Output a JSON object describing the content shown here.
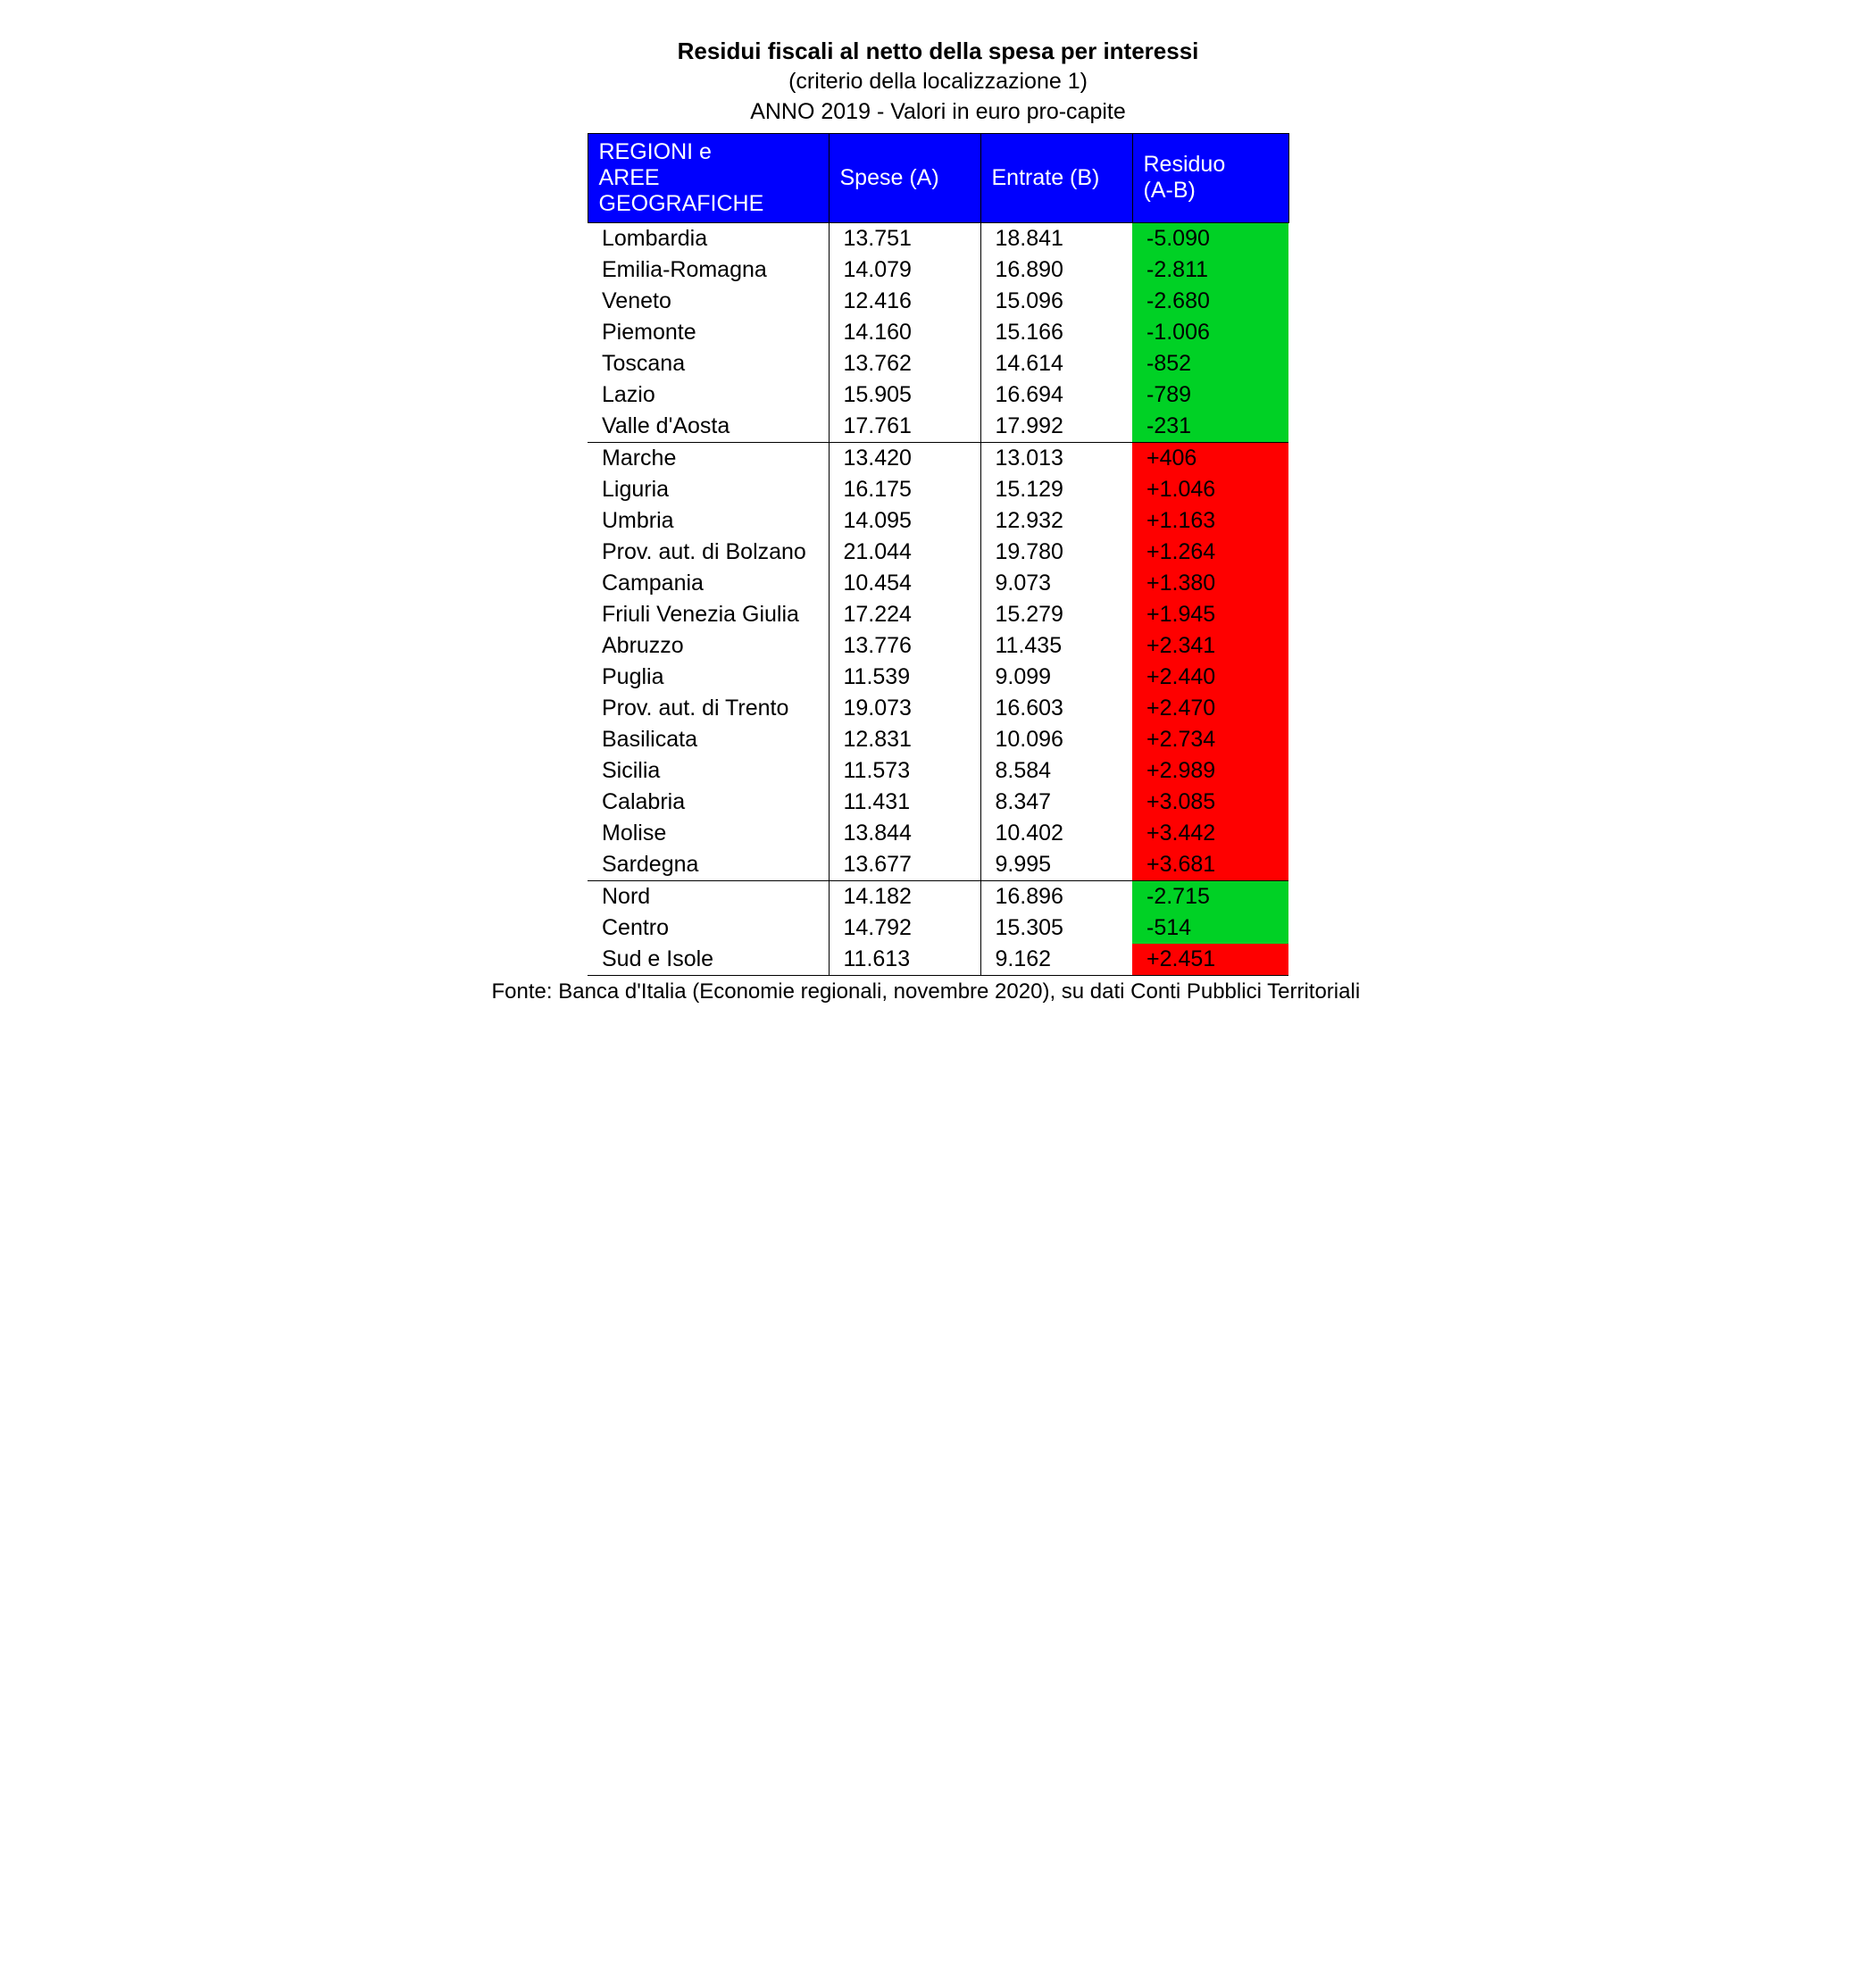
{
  "title": "Residui fiscali al netto della spesa per interessi",
  "subtitle1": "(criterio della localizzazione 1)",
  "subtitle2": "ANNO 2019 - Valori in euro pro-capite",
  "footnote": "Fonte: Banca d'Italia (Economie regionali, novembre 2020), su dati Conti Pubblici Territoriali",
  "colors": {
    "header_bg": "#0000fe",
    "header_fg": "#ffffff",
    "neg_bg": "#00d125",
    "pos_bg": "#fe0000",
    "cell_fg": "#000000",
    "border": "#000000"
  },
  "columns": {
    "region_line1": "REGIONI e",
    "region_line2": "AREE GEOGRAFICHE",
    "spese": "Spese (A)",
    "entrate": "Entrate (B)",
    "residuo_line1": "Residuo",
    "residuo_line2": "(A-B)"
  },
  "sections": [
    {
      "rows": [
        {
          "region": "Lombardia",
          "spese": "13.751",
          "entrate": "18.841",
          "residuo": "-5.090",
          "sign": "neg"
        },
        {
          "region": "Emilia-Romagna",
          "spese": "14.079",
          "entrate": "16.890",
          "residuo": "-2.811",
          "sign": "neg"
        },
        {
          "region": "Veneto",
          "spese": "12.416",
          "entrate": "15.096",
          "residuo": "-2.680",
          "sign": "neg"
        },
        {
          "region": "Piemonte",
          "spese": "14.160",
          "entrate": "15.166",
          "residuo": "-1.006",
          "sign": "neg"
        },
        {
          "region": "Toscana",
          "spese": "13.762",
          "entrate": "14.614",
          "residuo": "-852",
          "sign": "neg"
        },
        {
          "region": "Lazio",
          "spese": "15.905",
          "entrate": "16.694",
          "residuo": "-789",
          "sign": "neg"
        },
        {
          "region": "Valle d'Aosta",
          "spese": "17.761",
          "entrate": "17.992",
          "residuo": "-231",
          "sign": "neg"
        }
      ]
    },
    {
      "rows": [
        {
          "region": "Marche",
          "spese": "13.420",
          "entrate": "13.013",
          "residuo": "+406",
          "sign": "pos"
        },
        {
          "region": "Liguria",
          "spese": "16.175",
          "entrate": "15.129",
          "residuo": "+1.046",
          "sign": "pos"
        },
        {
          "region": "Umbria",
          "spese": "14.095",
          "entrate": "12.932",
          "residuo": "+1.163",
          "sign": "pos"
        },
        {
          "region": "Prov. aut. di Bolzano",
          "spese": "21.044",
          "entrate": "19.780",
          "residuo": "+1.264",
          "sign": "pos"
        },
        {
          "region": "Campania",
          "spese": "10.454",
          "entrate": "9.073",
          "residuo": "+1.380",
          "sign": "pos"
        },
        {
          "region": "Friuli Venezia Giulia",
          "spese": "17.224",
          "entrate": "15.279",
          "residuo": "+1.945",
          "sign": "pos"
        },
        {
          "region": "Abruzzo",
          "spese": "13.776",
          "entrate": "11.435",
          "residuo": "+2.341",
          "sign": "pos"
        },
        {
          "region": "Puglia",
          "spese": "11.539",
          "entrate": "9.099",
          "residuo": "+2.440",
          "sign": "pos"
        },
        {
          "region": "Prov. aut. di Trento",
          "spese": "19.073",
          "entrate": "16.603",
          "residuo": "+2.470",
          "sign": "pos"
        },
        {
          "region": "Basilicata",
          "spese": "12.831",
          "entrate": "10.096",
          "residuo": "+2.734",
          "sign": "pos"
        },
        {
          "region": "Sicilia",
          "spese": "11.573",
          "entrate": "8.584",
          "residuo": "+2.989",
          "sign": "pos"
        },
        {
          "region": "Calabria",
          "spese": "11.431",
          "entrate": "8.347",
          "residuo": "+3.085",
          "sign": "pos"
        },
        {
          "region": "Molise",
          "spese": "13.844",
          "entrate": "10.402",
          "residuo": "+3.442",
          "sign": "pos"
        },
        {
          "region": "Sardegna",
          "spese": "13.677",
          "entrate": "9.995",
          "residuo": "+3.681",
          "sign": "pos"
        }
      ]
    },
    {
      "rows": [
        {
          "region": "Nord",
          "spese": "14.182",
          "entrate": "16.896",
          "residuo": "-2.715",
          "sign": "neg"
        },
        {
          "region": "Centro",
          "spese": "14.792",
          "entrate": "15.305",
          "residuo": "-514",
          "sign": "neg"
        },
        {
          "region": "Sud e Isole",
          "spese": "11.613",
          "entrate": "9.162",
          "residuo": "+2.451",
          "sign": "pos"
        }
      ]
    }
  ]
}
